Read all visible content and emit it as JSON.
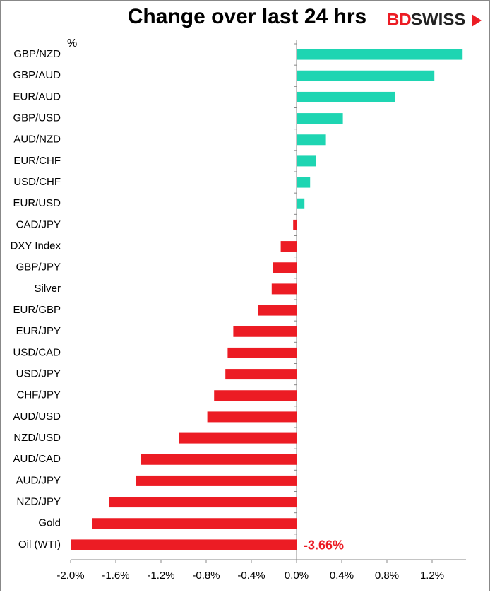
{
  "chart_data": {
    "type": "hbar",
    "title": "Change over last 24 hrs",
    "logo_prefix": "BD",
    "logo_suffix": "SWISS",
    "unit": "%",
    "categories": [
      "GBP/NZD",
      "GBP/AUD",
      "EUR/AUD",
      "GBP/USD",
      "AUD/NZD",
      "EUR/CHF",
      "USD/CHF",
      "EUR/USD",
      "CAD/JPY",
      "DXY Index",
      "GBP/JPY",
      "Silver",
      "EUR/GBP",
      "EUR/JPY",
      "USD/CAD",
      "USD/JPY",
      "CHF/JPY",
      "AUD/USD",
      "NZD/USD",
      "AUD/CAD",
      "AUD/JPY",
      "NZD/JPY",
      "Gold",
      "Oil (WTI)"
    ],
    "values": [
      1.47,
      1.22,
      0.87,
      0.41,
      0.26,
      0.17,
      0.12,
      0.07,
      -0.03,
      -0.14,
      -0.21,
      -0.22,
      -0.34,
      -0.56,
      -0.61,
      -0.63,
      -0.73,
      -0.79,
      -1.04,
      -1.38,
      -1.42,
      -1.66,
      -1.81,
      -3.66
    ],
    "value_labels": [
      null,
      null,
      null,
      null,
      null,
      null,
      null,
      null,
      null,
      null,
      null,
      null,
      null,
      null,
      null,
      null,
      null,
      null,
      null,
      null,
      null,
      null,
      null,
      "-3.66%"
    ],
    "positive_color": "#1ed5b2",
    "negative_color": "#ec1c24",
    "xlim": [
      -2.0,
      1.5
    ],
    "xticks": [
      {
        "value": -2.0,
        "label": "-2.0%"
      },
      {
        "value": -1.6,
        "label": "-1.6%"
      },
      {
        "value": -1.2,
        "label": "-1.2%"
      },
      {
        "value": -0.8,
        "label": "-0.8%"
      },
      {
        "value": -0.4,
        "label": "-0.4%"
      },
      {
        "value": 0.0,
        "label": "0.0%"
      },
      {
        "value": 0.4,
        "label": "0.4%"
      },
      {
        "value": 0.8,
        "label": "0.8%"
      },
      {
        "value": 1.2,
        "label": "1.2%"
      }
    ],
    "grid": false
  }
}
